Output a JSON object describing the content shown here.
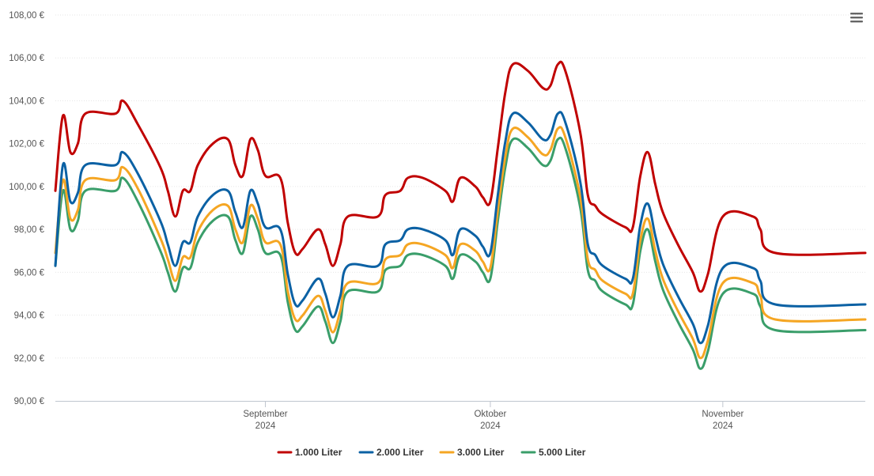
{
  "chart_data": {
    "type": "line",
    "ylim": [
      90,
      108
    ],
    "y_ticks": [
      "90,00 €",
      "92,00 €",
      "94,00 €",
      "96,00 €",
      "98,00 €",
      "100,00 €",
      "102,00 €",
      "104,00 €",
      "106,00 €",
      "108,00 €"
    ],
    "y_tick_values": [
      90,
      92,
      94,
      96,
      98,
      100,
      102,
      104,
      106,
      108
    ],
    "x_range": [
      "2024-08-04",
      "2024-11-20"
    ],
    "x_ticks": [
      {
        "date": "2024-09-01",
        "month": "September",
        "year": "2024"
      },
      {
        "date": "2024-10-01",
        "month": "Oktober",
        "year": "2024"
      },
      {
        "date": "2024-11-01",
        "month": "November",
        "year": "2024"
      }
    ],
    "grid": true,
    "legend_position": "bottom",
    "series": [
      {
        "name": "1.000 Liter",
        "color": "#c00000",
        "points": [
          [
            "2024-08-04",
            99.8
          ],
          [
            "2024-08-05",
            103.3
          ],
          [
            "2024-08-06",
            101.6
          ],
          [
            "2024-08-07",
            102.0
          ],
          [
            "2024-08-08",
            103.4
          ],
          [
            "2024-08-12",
            103.4
          ],
          [
            "2024-08-13",
            104.0
          ],
          [
            "2024-08-15",
            102.9
          ],
          [
            "2024-08-18",
            100.9
          ],
          [
            "2024-08-19",
            99.8
          ],
          [
            "2024-08-20",
            98.6
          ],
          [
            "2024-08-21",
            99.8
          ],
          [
            "2024-08-22",
            99.8
          ],
          [
            "2024-08-23",
            101.0
          ],
          [
            "2024-08-25",
            102.0
          ],
          [
            "2024-08-27",
            102.2
          ],
          [
            "2024-08-28",
            101.0
          ],
          [
            "2024-08-29",
            100.5
          ],
          [
            "2024-08-30",
            102.2
          ],
          [
            "2024-08-31",
            101.7
          ],
          [
            "2024-09-01",
            100.5
          ],
          [
            "2024-09-03",
            100.4
          ],
          [
            "2024-09-04",
            98.3
          ],
          [
            "2024-09-05",
            96.9
          ],
          [
            "2024-09-06",
            97.1
          ],
          [
            "2024-09-08",
            98.0
          ],
          [
            "2024-09-09",
            97.3
          ],
          [
            "2024-09-10",
            96.3
          ],
          [
            "2024-09-11",
            97.3
          ],
          [
            "2024-09-12",
            98.6
          ],
          [
            "2024-09-16",
            98.6
          ],
          [
            "2024-09-17",
            99.6
          ],
          [
            "2024-09-19",
            99.8
          ],
          [
            "2024-09-20",
            100.4
          ],
          [
            "2024-09-22",
            100.4
          ],
          [
            "2024-09-25",
            99.8
          ],
          [
            "2024-09-26",
            99.3
          ],
          [
            "2024-09-27",
            100.4
          ],
          [
            "2024-09-29",
            100.0
          ],
          [
            "2024-09-30",
            99.5
          ],
          [
            "2024-10-01",
            99.3
          ],
          [
            "2024-10-02",
            101.8
          ],
          [
            "2024-10-03",
            104.4
          ],
          [
            "2024-10-04",
            105.7
          ],
          [
            "2024-10-06",
            105.4
          ],
          [
            "2024-10-08",
            104.6
          ],
          [
            "2024-10-09",
            104.7
          ],
          [
            "2024-10-10",
            105.7
          ],
          [
            "2024-10-11",
            105.4
          ],
          [
            "2024-10-13",
            102.5
          ],
          [
            "2024-10-14",
            99.6
          ],
          [
            "2024-10-15",
            99.1
          ],
          [
            "2024-10-16",
            98.7
          ],
          [
            "2024-10-19",
            98.1
          ],
          [
            "2024-10-20",
            98.1
          ],
          [
            "2024-10-21",
            100.5
          ],
          [
            "2024-10-22",
            101.6
          ],
          [
            "2024-10-23",
            100.1
          ],
          [
            "2024-10-24",
            98.8
          ],
          [
            "2024-10-26",
            97.3
          ],
          [
            "2024-10-28",
            96.0
          ],
          [
            "2024-10-29",
            95.1
          ],
          [
            "2024-10-30",
            95.9
          ],
          [
            "2024-11-01",
            98.6
          ],
          [
            "2024-11-05",
            98.6
          ],
          [
            "2024-11-06",
            98.0
          ],
          [
            "2024-11-08",
            96.9
          ],
          [
            "2024-11-20",
            96.9
          ]
        ]
      },
      {
        "name": "2.000 Liter",
        "color": "#0b61a4",
        "points": [
          [
            "2024-08-04",
            96.3
          ],
          [
            "2024-08-05",
            101.0
          ],
          [
            "2024-08-06",
            99.3
          ],
          [
            "2024-08-07",
            99.7
          ],
          [
            "2024-08-08",
            101.0
          ],
          [
            "2024-08-12",
            101.0
          ],
          [
            "2024-08-13",
            101.6
          ],
          [
            "2024-08-15",
            100.6
          ],
          [
            "2024-08-18",
            98.4
          ],
          [
            "2024-08-19",
            97.3
          ],
          [
            "2024-08-20",
            96.3
          ],
          [
            "2024-08-21",
            97.4
          ],
          [
            "2024-08-22",
            97.4
          ],
          [
            "2024-08-23",
            98.6
          ],
          [
            "2024-08-25",
            99.6
          ],
          [
            "2024-08-27",
            99.8
          ],
          [
            "2024-08-28",
            98.8
          ],
          [
            "2024-08-29",
            98.1
          ],
          [
            "2024-08-30",
            99.8
          ],
          [
            "2024-08-31",
            99.2
          ],
          [
            "2024-09-01",
            98.1
          ],
          [
            "2024-09-03",
            98.0
          ],
          [
            "2024-09-04",
            95.9
          ],
          [
            "2024-09-05",
            94.5
          ],
          [
            "2024-09-06",
            94.7
          ],
          [
            "2024-09-08",
            95.7
          ],
          [
            "2024-09-09",
            95.0
          ],
          [
            "2024-09-10",
            93.9
          ],
          [
            "2024-09-11",
            94.9
          ],
          [
            "2024-09-12",
            96.3
          ],
          [
            "2024-09-16",
            96.3
          ],
          [
            "2024-09-17",
            97.3
          ],
          [
            "2024-09-19",
            97.5
          ],
          [
            "2024-09-20",
            98.0
          ],
          [
            "2024-09-22",
            98.0
          ],
          [
            "2024-09-25",
            97.5
          ],
          [
            "2024-09-26",
            96.8
          ],
          [
            "2024-09-27",
            98.0
          ],
          [
            "2024-09-29",
            97.7
          ],
          [
            "2024-09-30",
            97.2
          ],
          [
            "2024-10-01",
            96.9
          ],
          [
            "2024-10-02",
            99.6
          ],
          [
            "2024-10-03",
            102.1
          ],
          [
            "2024-10-04",
            103.4
          ],
          [
            "2024-10-06",
            103.0
          ],
          [
            "2024-10-08",
            102.2
          ],
          [
            "2024-10-09",
            102.4
          ],
          [
            "2024-10-10",
            103.4
          ],
          [
            "2024-10-11",
            103.0
          ],
          [
            "2024-10-13",
            100.2
          ],
          [
            "2024-10-14",
            97.3
          ],
          [
            "2024-10-15",
            96.8
          ],
          [
            "2024-10-16",
            96.3
          ],
          [
            "2024-10-19",
            95.7
          ],
          [
            "2024-10-20",
            95.7
          ],
          [
            "2024-10-21",
            98.2
          ],
          [
            "2024-10-22",
            99.2
          ],
          [
            "2024-10-23",
            97.7
          ],
          [
            "2024-10-24",
            96.4
          ],
          [
            "2024-10-26",
            94.9
          ],
          [
            "2024-10-28",
            93.6
          ],
          [
            "2024-10-29",
            92.7
          ],
          [
            "2024-10-30",
            93.5
          ],
          [
            "2024-11-01",
            96.2
          ],
          [
            "2024-11-05",
            96.2
          ],
          [
            "2024-11-06",
            95.6
          ],
          [
            "2024-11-08",
            94.5
          ],
          [
            "2024-11-20",
            94.5
          ]
        ]
      },
      {
        "name": "3.000 Liter",
        "color": "#f5a623",
        "points": [
          [
            "2024-08-04",
            96.9
          ],
          [
            "2024-08-05",
            100.3
          ],
          [
            "2024-08-06",
            98.5
          ],
          [
            "2024-08-07",
            98.9
          ],
          [
            "2024-08-08",
            100.3
          ],
          [
            "2024-08-12",
            100.3
          ],
          [
            "2024-08-13",
            100.9
          ],
          [
            "2024-08-15",
            99.9
          ],
          [
            "2024-08-18",
            97.6
          ],
          [
            "2024-08-19",
            96.6
          ],
          [
            "2024-08-20",
            95.6
          ],
          [
            "2024-08-21",
            96.7
          ],
          [
            "2024-08-22",
            96.7
          ],
          [
            "2024-08-23",
            97.9
          ],
          [
            "2024-08-25",
            98.9
          ],
          [
            "2024-08-27",
            99.1
          ],
          [
            "2024-08-28",
            98.0
          ],
          [
            "2024-08-29",
            97.4
          ],
          [
            "2024-08-30",
            99.1
          ],
          [
            "2024-08-31",
            98.5
          ],
          [
            "2024-09-01",
            97.4
          ],
          [
            "2024-09-03",
            97.3
          ],
          [
            "2024-09-04",
            95.1
          ],
          [
            "2024-09-05",
            93.8
          ],
          [
            "2024-09-06",
            94.0
          ],
          [
            "2024-09-08",
            94.9
          ],
          [
            "2024-09-09",
            94.2
          ],
          [
            "2024-09-10",
            93.2
          ],
          [
            "2024-09-11",
            94.2
          ],
          [
            "2024-09-12",
            95.5
          ],
          [
            "2024-09-16",
            95.5
          ],
          [
            "2024-09-17",
            96.6
          ],
          [
            "2024-09-19",
            96.8
          ],
          [
            "2024-09-20",
            97.3
          ],
          [
            "2024-09-22",
            97.3
          ],
          [
            "2024-09-25",
            96.8
          ],
          [
            "2024-09-26",
            96.2
          ],
          [
            "2024-09-27",
            97.3
          ],
          [
            "2024-09-29",
            97.0
          ],
          [
            "2024-09-30",
            96.5
          ],
          [
            "2024-10-01",
            96.2
          ],
          [
            "2024-10-02",
            98.9
          ],
          [
            "2024-10-03",
            101.4
          ],
          [
            "2024-10-04",
            102.7
          ],
          [
            "2024-10-06",
            102.3
          ],
          [
            "2024-10-08",
            101.5
          ],
          [
            "2024-10-09",
            101.7
          ],
          [
            "2024-10-10",
            102.7
          ],
          [
            "2024-10-11",
            102.3
          ],
          [
            "2024-10-13",
            99.5
          ],
          [
            "2024-10-14",
            96.6
          ],
          [
            "2024-10-15",
            96.1
          ],
          [
            "2024-10-16",
            95.6
          ],
          [
            "2024-10-19",
            95.0
          ],
          [
            "2024-10-20",
            95.0
          ],
          [
            "2024-10-21",
            97.5
          ],
          [
            "2024-10-22",
            98.5
          ],
          [
            "2024-10-23",
            97.0
          ],
          [
            "2024-10-24",
            95.7
          ],
          [
            "2024-10-26",
            94.2
          ],
          [
            "2024-10-28",
            92.9
          ],
          [
            "2024-10-29",
            92.0
          ],
          [
            "2024-10-30",
            92.8
          ],
          [
            "2024-11-01",
            95.5
          ],
          [
            "2024-11-05",
            95.5
          ],
          [
            "2024-11-06",
            94.9
          ],
          [
            "2024-11-08",
            93.8
          ],
          [
            "2024-11-20",
            93.8
          ]
        ]
      },
      {
        "name": "5.000 Liter",
        "color": "#3a9e6a",
        "points": [
          [
            "2024-08-04",
            96.3
          ],
          [
            "2024-08-05",
            99.8
          ],
          [
            "2024-08-06",
            98.0
          ],
          [
            "2024-08-07",
            98.4
          ],
          [
            "2024-08-08",
            99.8
          ],
          [
            "2024-08-12",
            99.8
          ],
          [
            "2024-08-13",
            100.4
          ],
          [
            "2024-08-15",
            99.3
          ],
          [
            "2024-08-18",
            97.0
          ],
          [
            "2024-08-19",
            96.0
          ],
          [
            "2024-08-20",
            95.1
          ],
          [
            "2024-08-21",
            96.2
          ],
          [
            "2024-08-22",
            96.2
          ],
          [
            "2024-08-23",
            97.4
          ],
          [
            "2024-08-25",
            98.4
          ],
          [
            "2024-08-27",
            98.6
          ],
          [
            "2024-08-28",
            97.5
          ],
          [
            "2024-08-29",
            96.9
          ],
          [
            "2024-08-30",
            98.6
          ],
          [
            "2024-08-31",
            98.0
          ],
          [
            "2024-09-01",
            96.9
          ],
          [
            "2024-09-03",
            96.8
          ],
          [
            "2024-09-04",
            94.6
          ],
          [
            "2024-09-05",
            93.3
          ],
          [
            "2024-09-06",
            93.5
          ],
          [
            "2024-09-08",
            94.4
          ],
          [
            "2024-09-09",
            93.7
          ],
          [
            "2024-09-10",
            92.7
          ],
          [
            "2024-09-11",
            93.7
          ],
          [
            "2024-09-12",
            95.1
          ],
          [
            "2024-09-16",
            95.1
          ],
          [
            "2024-09-17",
            96.1
          ],
          [
            "2024-09-19",
            96.3
          ],
          [
            "2024-09-20",
            96.8
          ],
          [
            "2024-09-22",
            96.8
          ],
          [
            "2024-09-25",
            96.3
          ],
          [
            "2024-09-26",
            95.7
          ],
          [
            "2024-09-27",
            96.8
          ],
          [
            "2024-09-29",
            96.5
          ],
          [
            "2024-09-30",
            96.0
          ],
          [
            "2024-10-01",
            95.7
          ],
          [
            "2024-10-02",
            98.4
          ],
          [
            "2024-10-03",
            100.9
          ],
          [
            "2024-10-04",
            102.2
          ],
          [
            "2024-10-06",
            101.8
          ],
          [
            "2024-10-08",
            101.0
          ],
          [
            "2024-10-09",
            101.2
          ],
          [
            "2024-10-10",
            102.2
          ],
          [
            "2024-10-11",
            101.8
          ],
          [
            "2024-10-13",
            99.0
          ],
          [
            "2024-10-14",
            96.1
          ],
          [
            "2024-10-15",
            95.6
          ],
          [
            "2024-10-16",
            95.1
          ],
          [
            "2024-10-19",
            94.5
          ],
          [
            "2024-10-20",
            94.5
          ],
          [
            "2024-10-21",
            97.0
          ],
          [
            "2024-10-22",
            98.0
          ],
          [
            "2024-10-23",
            96.5
          ],
          [
            "2024-10-24",
            95.2
          ],
          [
            "2024-10-26",
            93.7
          ],
          [
            "2024-10-28",
            92.4
          ],
          [
            "2024-10-29",
            91.5
          ],
          [
            "2024-10-30",
            92.3
          ],
          [
            "2024-11-01",
            95.0
          ],
          [
            "2024-11-05",
            95.0
          ],
          [
            "2024-11-06",
            94.4
          ],
          [
            "2024-11-08",
            93.3
          ],
          [
            "2024-11-20",
            93.3
          ]
        ]
      }
    ]
  },
  "menu": {
    "icon": "hamburger-menu-icon"
  }
}
